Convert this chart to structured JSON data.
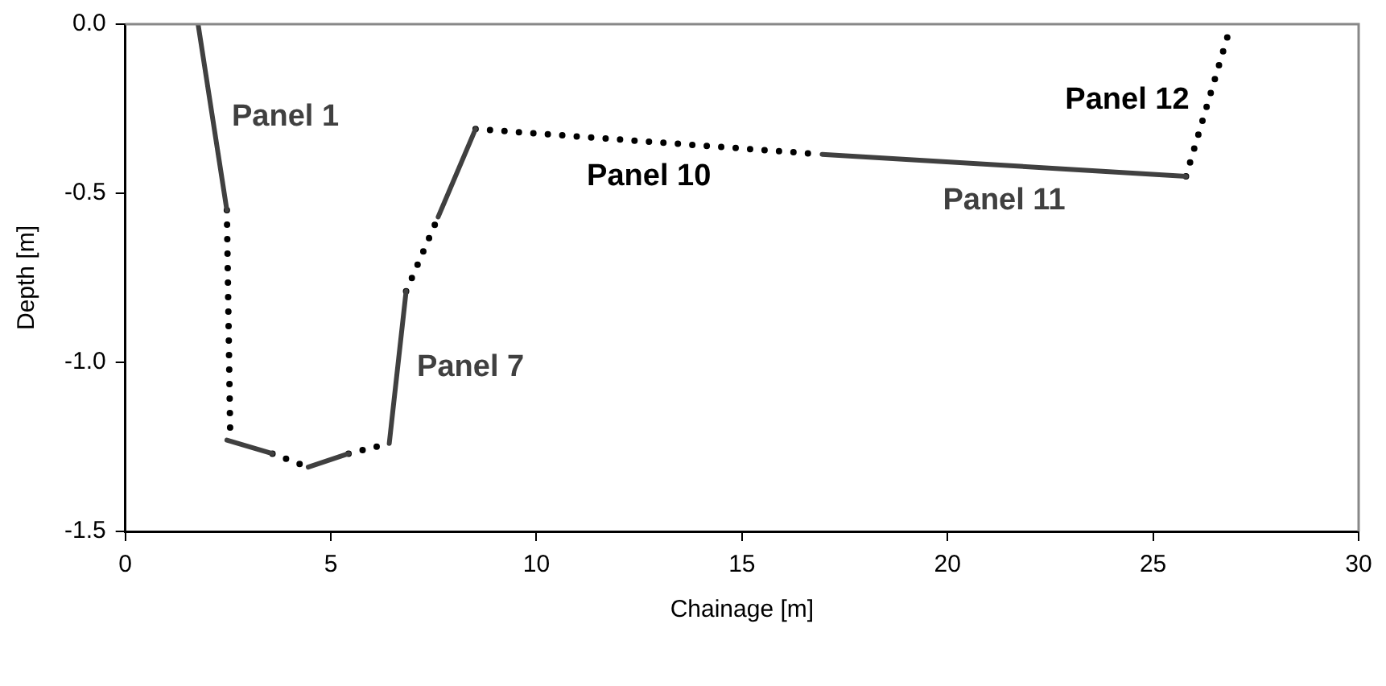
{
  "chart_data": {
    "type": "line",
    "xlabel": "Chainage [m]",
    "ylabel": "Depth [m]",
    "xlim": [
      0,
      30
    ],
    "xticks": [
      0,
      5,
      10,
      15,
      20,
      25,
      30
    ],
    "ylim": [
      -1.5,
      0
    ],
    "yticks": [
      {
        "value": 0,
        "label": "0.0"
      },
      -0.5,
      {
        "value": -1,
        "label": "-1.0"
      },
      -1.5
    ],
    "grid": false,
    "legend": false,
    "marker": "none",
    "series": [
      {
        "name": "Panel 1",
        "color": "#404040",
        "line_style": "solid",
        "x": [
          1.77,
          2.47
        ],
        "values": [
          0,
          -0.55
        ]
      },
      {
        "color": "#000000",
        "line_style": "dotted",
        "x": [
          2.47,
          2.55
        ],
        "values": [
          -0.55,
          -1.2
        ]
      },
      {
        "color": "#404040",
        "line_style": "solid",
        "x": [
          2.47,
          3.58
        ],
        "values": [
          -1.23,
          -1.27
        ]
      },
      {
        "color": "#000000",
        "line_style": "dotted",
        "x": [
          3.58,
          4.45
        ],
        "values": [
          -1.27,
          -1.31
        ]
      },
      {
        "color": "#404040",
        "line_style": "solid",
        "x": [
          4.45,
          5.43
        ],
        "values": [
          -1.31,
          -1.27
        ]
      },
      {
        "color": "#000000",
        "line_style": "dotted",
        "x": [
          5.43,
          6.42
        ],
        "values": [
          -1.27,
          -1.24
        ]
      },
      {
        "name": "Panel 7",
        "color": "#404040",
        "line_style": "solid",
        "x": [
          6.42,
          6.83
        ],
        "values": [
          -1.24,
          -0.79
        ]
      },
      {
        "color": "#000000",
        "line_style": "dotted",
        "x": [
          6.83,
          7.61
        ],
        "values": [
          -0.79,
          -0.57
        ]
      },
      {
        "color": "#404040",
        "line_style": "solid",
        "x": [
          7.61,
          8.52
        ],
        "values": [
          -0.57,
          -0.31
        ]
      },
      {
        "name": "Panel 10",
        "color": "#000000",
        "line_style": "dotted",
        "x": [
          8.52,
          16.95
        ],
        "values": [
          -0.31,
          -0.385
        ]
      },
      {
        "name": "Panel 11",
        "color": "#404040",
        "line_style": "solid",
        "x": [
          16.95,
          25.8
        ],
        "values": [
          -0.385,
          -0.45
        ]
      },
      {
        "name": "Panel 12",
        "color": "#000000",
        "line_style": "dotted",
        "x": [
          25.8,
          26.9
        ],
        "values": [
          -0.45,
          0
        ]
      }
    ]
  }
}
